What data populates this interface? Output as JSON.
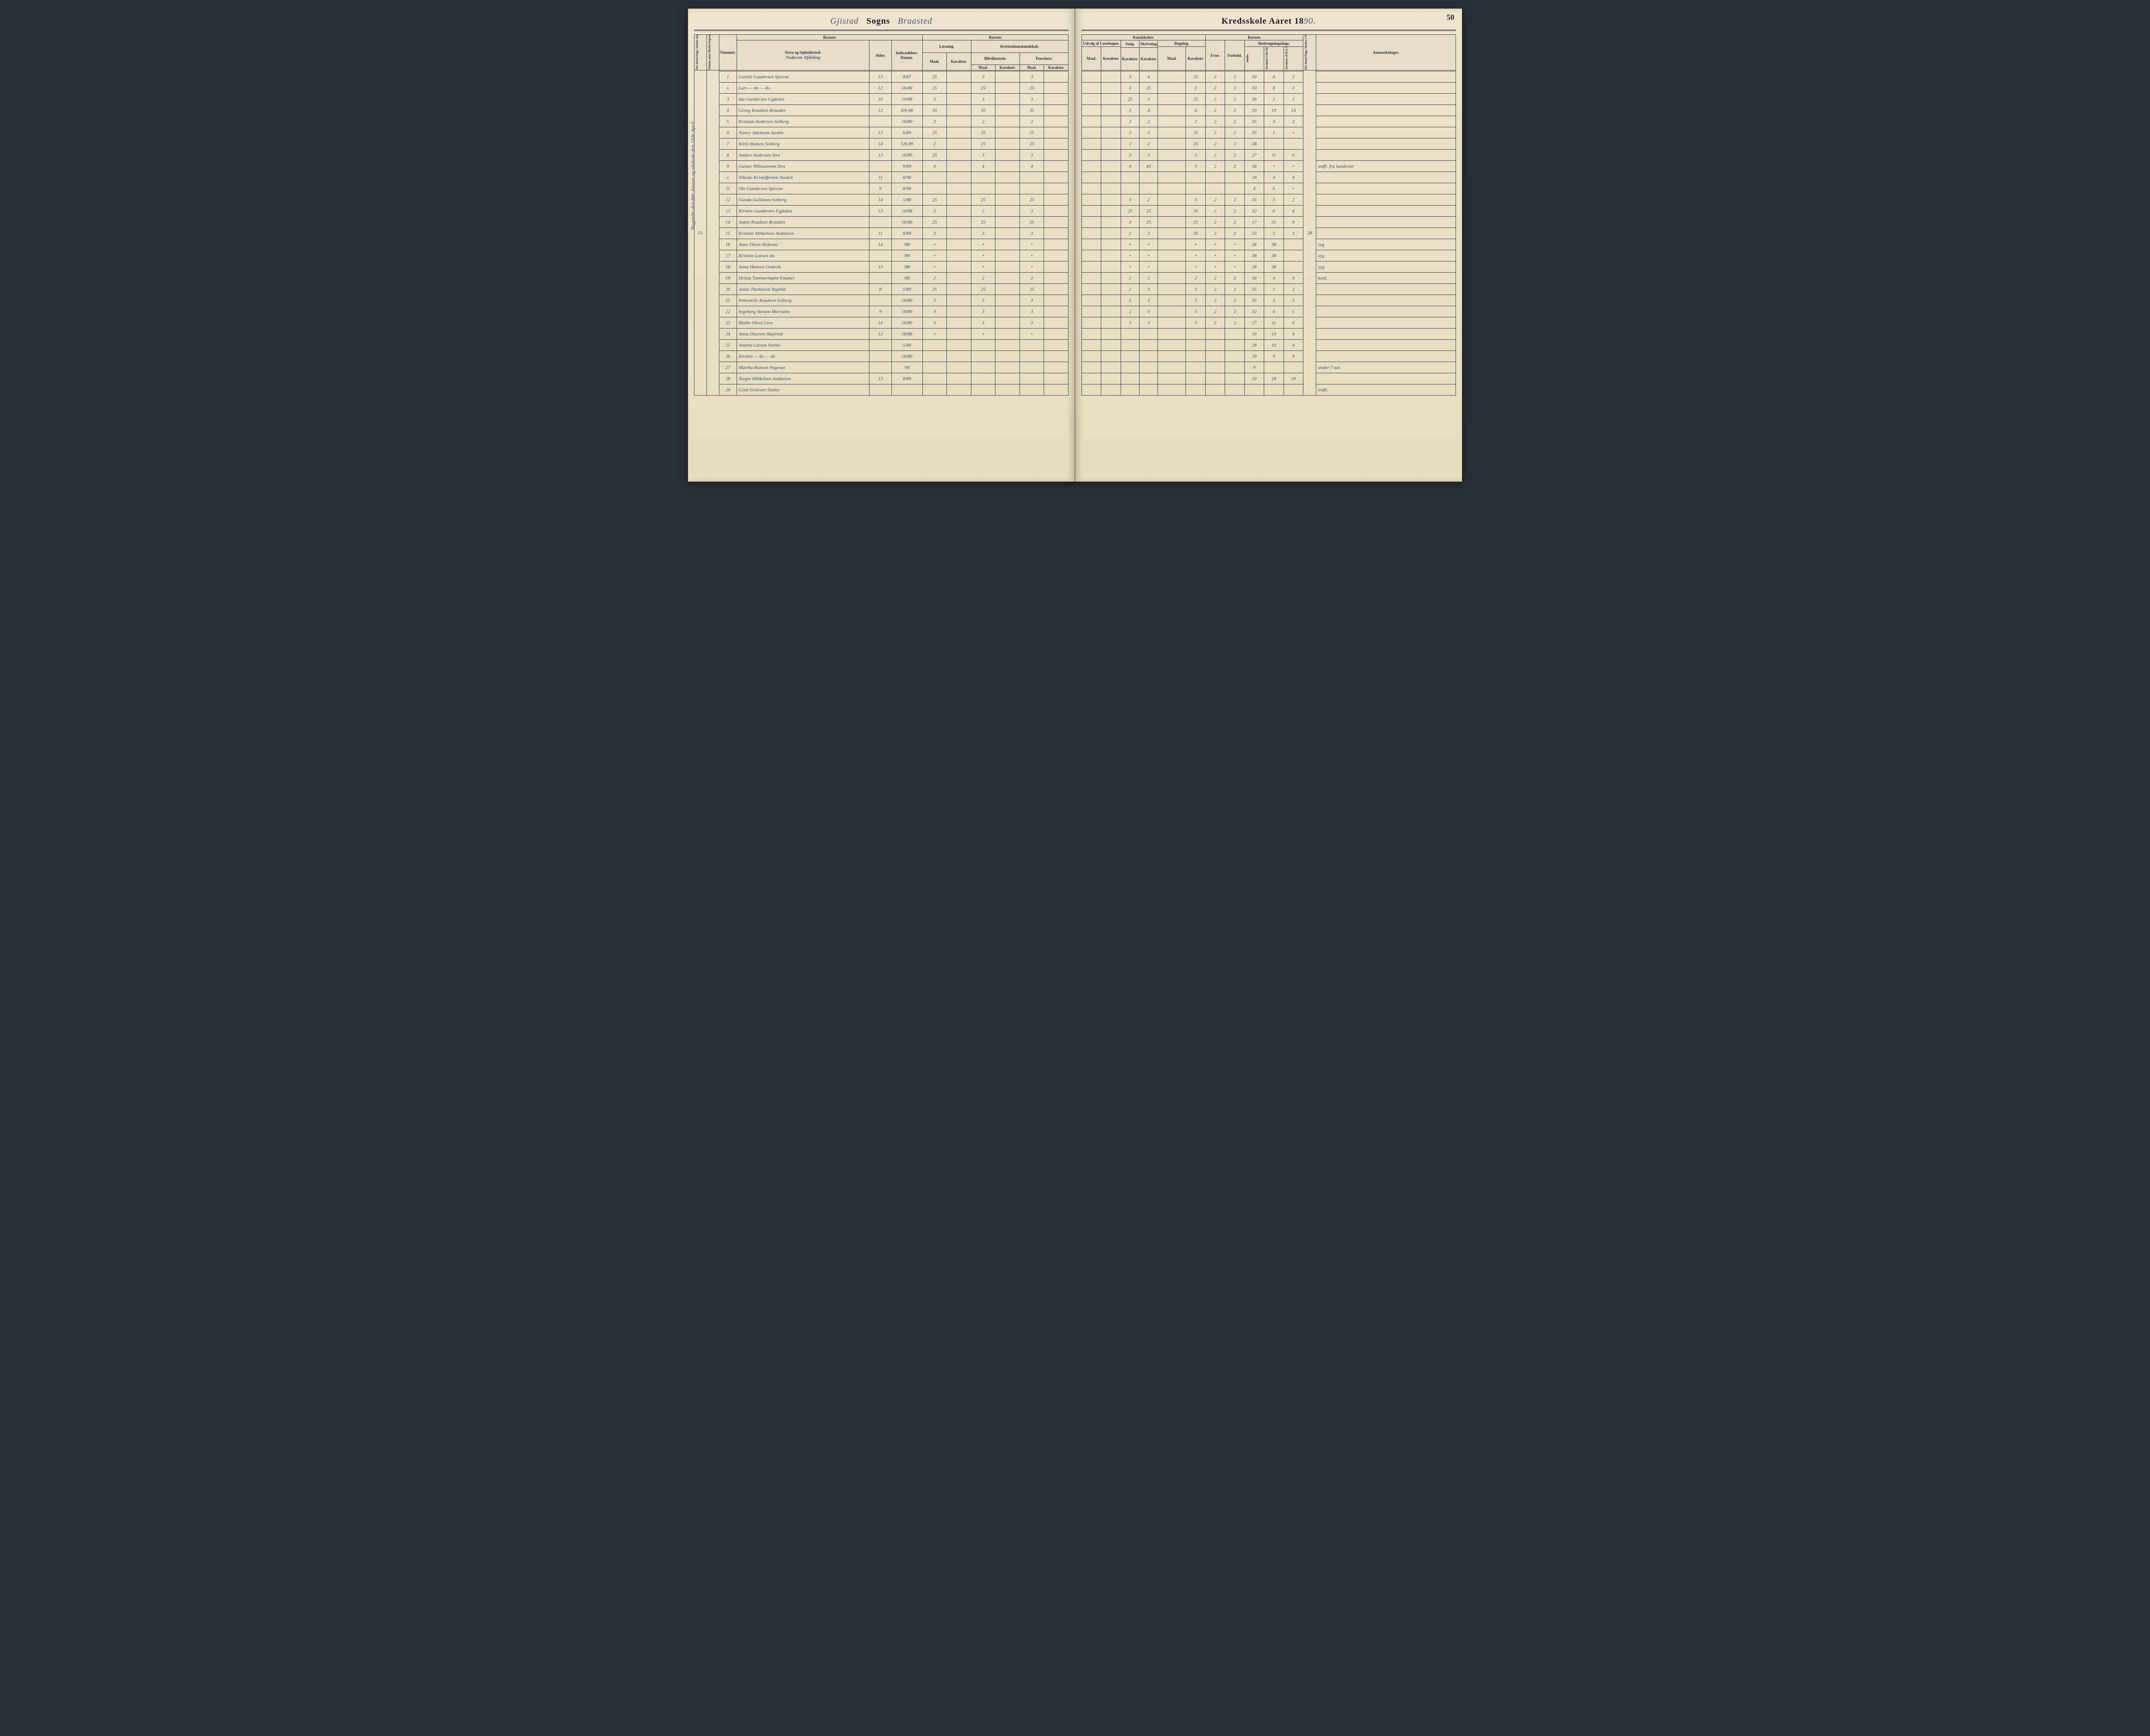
{
  "page_number": "50",
  "title_left": {
    "script": "Gjistad",
    "printed": "Sogns",
    "script2": "Braasted"
  },
  "title_right": {
    "printed": "Kredsskole Aaret 18",
    "script": "90."
  },
  "margin_note_left": "Begyndte den 8de Januar og sluttede den 16de April.",
  "margin_total": "51",
  "right_margin_total": "38",
  "headers_left": {
    "vcol1": "Det Antal Dage, Skolen skal holdes i Kredsen.",
    "vcol2": "Datum, naar Skolen begynder og slutter hver Omgang.",
    "nummer": "Nummer.",
    "barnets": "Barnets",
    "navn": "Navn og Opholdssted.",
    "section_note": "Nederste Afdeling",
    "alder": "Alder.",
    "indtr": "Indtrædelses-Datum.",
    "laesning": "Læsning.",
    "kristendom": "Kristendomskundskab.",
    "maal": "Maal.",
    "karakter": "Karakter.",
    "bibel": "Bibelhistorie.",
    "troes": "Troeslære."
  },
  "headers_right": {
    "kundskaber": "Kundskaber.",
    "udvalg": "Udvalg af Læsebogen.",
    "sang": "Sang.",
    "skriv": "Skrivning.",
    "regning": "Regning.",
    "barnets": "Barnets",
    "evne": "Evne.",
    "forhold": "Forhold.",
    "skole": "Skolesøgningsdage.",
    "modte": "mødte",
    "fors1": "forsømte i det Hele.",
    "fors2": "forsømte af lovl. Grund.",
    "vcol": "Det Antal Dage, Skolen i Virkeligheden er holdt.",
    "anm": "Anmærkninger."
  },
  "rows": [
    {
      "n": "1",
      "name": "Gunild Gundersen Spirene",
      "a": "13",
      "d": "8/87",
      "l_m": "25",
      "l_k": "",
      "b_m": "3",
      "b_k": "",
      "t_m": "3",
      "t_k": "",
      "u_m": "",
      "u_k": "",
      "sa": "3",
      "sk": "4",
      "r_m": "",
      "r_k": "25",
      "ev": "2",
      "fo": "2",
      "md": "30",
      "f1": "8",
      "f2": "2",
      "an": ""
    },
    {
      "n": "x",
      "name": "Lars — do — do",
      "a": "12",
      "d": "16/88",
      "l_m": "25",
      "l_k": "",
      "b_m": "25",
      "b_k": "",
      "t_m": "25",
      "t_k": "",
      "u_m": "",
      "u_k": "",
      "sa": "3",
      "sk": "25",
      "r_m": "",
      "r_k": "2",
      "ev": "2",
      "fo": "2",
      "md": "30",
      "f1": "8",
      "f2": "3",
      "an": ""
    },
    {
      "n": "3",
      "name": "Ida Gundersen Ugdalen",
      "a": "10",
      "d": "10/88",
      "l_m": "3",
      "l_k": "",
      "b_m": "3",
      "b_k": "",
      "t_m": "3",
      "t_k": "",
      "u_m": "",
      "u_k": "",
      "sa": "25",
      "sk": "3",
      "r_m": "",
      "r_k": "25",
      "ev": "2",
      "fo": "2",
      "md": "36",
      "f1": "2",
      "f2": "1",
      "an": ""
    },
    {
      "n": "4",
      "name": "Georg Knudsen Braaden",
      "a": "12",
      "d": "8/6 88",
      "l_m": "35",
      "l_k": "",
      "b_m": "35",
      "b_k": "",
      "t_m": "35",
      "t_k": "",
      "u_m": "",
      "u_k": "",
      "sa": "3",
      "sk": "4",
      "r_m": "",
      "r_k": "4",
      "ev": "2",
      "fo": "2",
      "md": "19",
      "f1": "19",
      "f2": "14",
      "an": ""
    },
    {
      "n": "5",
      "name": "Kristian Andersen Solberg",
      "a": "",
      "d": "16/89",
      "l_m": "3",
      "l_k": "",
      "b_m": "2",
      "b_k": "",
      "t_m": "2",
      "t_k": "",
      "u_m": "",
      "u_k": "",
      "sa": "2",
      "sk": "2",
      "r_m": "",
      "r_k": "2",
      "ev": "2",
      "fo": "2",
      "md": "35",
      "f1": "3",
      "f2": "2",
      "an": ""
    },
    {
      "n": "6",
      "name": "Nancy Jakobsen Aasbie",
      "a": "12",
      "d": "6/89",
      "l_m": "25",
      "l_k": "",
      "b_m": "25",
      "b_k": "",
      "t_m": "25",
      "t_k": "",
      "u_m": "",
      "u_k": "",
      "sa": "2",
      "sk": "3",
      "r_m": "",
      "r_k": "25",
      "ev": "2",
      "fo": "2",
      "md": "35",
      "f1": "1",
      "f2": "•",
      "an": ""
    },
    {
      "n": "7",
      "name": "Kittil Hansen Solberg",
      "a": "14",
      "d": "5/6 89",
      "l_m": "2",
      "l_k": "",
      "b_m": "25",
      "b_k": "",
      "t_m": "25",
      "t_k": "",
      "u_m": "",
      "u_k": "",
      "sa": "2",
      "sk": "2",
      "r_m": "",
      "r_k": "25",
      "ev": "2",
      "fo": "2",
      "md": "38",
      "f1": "",
      "f2": "",
      "an": ""
    },
    {
      "n": "8",
      "name": "Anders Andersen Stra",
      "a": "13",
      "d": "16/89",
      "l_m": "25",
      "l_k": "",
      "b_m": "3",
      "b_k": "",
      "t_m": "3",
      "t_k": "",
      "u_m": "",
      "u_k": "",
      "sa": "3",
      "sk": "3",
      "r_m": "",
      "r_k": "3",
      "ev": "2",
      "fo": "2",
      "md": "27",
      "f1": "11",
      "f2": "0",
      "an": ""
    },
    {
      "n": "9",
      "name": "Gustav Wilmastrøm Stra",
      "a": "",
      "d": "9/89",
      "l_m": "4",
      "l_k": "",
      "b_m": "4",
      "b_k": "",
      "t_m": "4",
      "t_k": "",
      "u_m": "",
      "u_k": "",
      "sa": "4",
      "sk": "45",
      "r_m": "",
      "r_k": "3",
      "ev": "2",
      "fo": "2",
      "md": "38",
      "f1": "•",
      "f2": "•",
      "an": "indfl. fra Sandsvær"
    },
    {
      "n": "x",
      "name": "Nikolai Kristoffersen Stadeli",
      "a": "11",
      "d": "8/90",
      "l_m": "",
      "l_k": "",
      "b_m": "",
      "b_k": "",
      "t_m": "",
      "t_k": "",
      "u_m": "",
      "u_k": "",
      "sa": "",
      "sk": "",
      "r_m": "",
      "r_k": "",
      "ev": "",
      "fo": "",
      "md": "18",
      "f1": "4",
      "f2": "4",
      "an": ""
    },
    {
      "n": "11",
      "name": "Ole Gundersen Spirene",
      "a": "9",
      "d": "8/90",
      "l_m": "",
      "l_k": "",
      "b_m": "",
      "b_k": "",
      "t_m": "",
      "t_k": "",
      "u_m": "",
      "u_k": "",
      "sa": "",
      "sk": "",
      "r_m": "",
      "r_k": "",
      "ev": "",
      "fo": "",
      "md": "4",
      "f1": "6",
      "f2": "•",
      "an": ""
    },
    {
      "n": "12",
      "name": "Gunda Gulliksen Solberg",
      "a": "14",
      "d": "5/88",
      "l_m": "25",
      "l_k": "",
      "b_m": "25",
      "b_k": "",
      "t_m": "25",
      "t_k": "",
      "u_m": "",
      "u_k": "",
      "sa": "3",
      "sk": "2",
      "r_m": "",
      "r_k": "3",
      "ev": "2",
      "fo": "2",
      "md": "35",
      "f1": "3",
      "f2": "2",
      "an": ""
    },
    {
      "n": "13",
      "name": "Kirsten Gundersen Ugdalen",
      "a": "13",
      "d": "16/88",
      "l_m": "3",
      "l_k": "",
      "b_m": "2",
      "b_k": "",
      "t_m": "3",
      "t_k": "",
      "u_m": "",
      "u_k": "",
      "sa": "25",
      "sk": "25",
      "r_m": "",
      "r_k": "35",
      "ev": "2",
      "fo": "2",
      "md": "32",
      "f1": "6",
      "f2": "4",
      "an": ""
    },
    {
      "n": "14",
      "name": "Anton Knudsen Braaden",
      "a": "",
      "d": "16/88",
      "l_m": "25",
      "l_k": "",
      "b_m": "25",
      "b_k": "",
      "t_m": "25",
      "t_k": "",
      "u_m": "",
      "u_k": "",
      "sa": "3",
      "sk": "25",
      "r_m": "",
      "r_k": "25",
      "ev": "2",
      "fo": "2",
      "md": "17",
      "f1": "21",
      "f2": "9",
      "an": ""
    },
    {
      "n": "15",
      "name": "Kristine Mikkelsen Andansen",
      "a": "11",
      "d": "8/89",
      "l_m": "3",
      "l_k": "",
      "b_m": "3",
      "b_k": "",
      "t_m": "3",
      "t_k": "",
      "u_m": "",
      "u_k": "",
      "sa": "2",
      "sk": "3",
      "r_m": "",
      "r_k": "35",
      "ev": "2",
      "fo": "2",
      "md": "33",
      "f1": "5",
      "f2": "3",
      "an": ""
    },
    {
      "n": "16",
      "name": "Anne Olsen Nedenas",
      "a": "14",
      "d": "/88",
      "l_m": "•",
      "l_k": "",
      "b_m": "•",
      "b_k": "",
      "t_m": "•",
      "t_k": "",
      "u_m": "",
      "u_k": "",
      "sa": "•",
      "sk": "•",
      "r_m": "",
      "r_k": "•",
      "ev": "•",
      "fo": "•",
      "md": "38",
      "f1": "38",
      "f2": "",
      "an": "syg"
    },
    {
      "n": "17",
      "name": "Kristine Larsen do.",
      "a": "",
      "d": "/89",
      "l_m": "•",
      "l_k": "",
      "b_m": "•",
      "b_k": "",
      "t_m": "•",
      "t_k": "",
      "u_m": "",
      "u_k": "",
      "sa": "•",
      "sk": "•",
      "r_m": "",
      "r_k": "•",
      "ev": "•",
      "fo": "•",
      "md": "38",
      "f1": "38",
      "f2": "",
      "an": "syg"
    },
    {
      "n": "18",
      "name": "Anna Hansen Grønvik",
      "a": "13",
      "d": "/88",
      "l_m": "•",
      "l_k": "",
      "b_m": "•",
      "b_k": "",
      "t_m": "•",
      "t_k": "",
      "u_m": "",
      "u_k": "",
      "sa": "•",
      "sk": "•",
      "r_m": "",
      "r_k": "•",
      "ev": "•",
      "fo": "•",
      "md": "38",
      "f1": "38",
      "f2": "",
      "an": "syg."
    },
    {
      "n": "19",
      "name": "Helma Tømmermann Emanel",
      "a": "",
      "d": "/88",
      "l_m": "2",
      "l_k": "",
      "b_m": "2",
      "b_k": "",
      "t_m": "2",
      "t_k": "",
      "u_m": "",
      "u_k": "",
      "sa": "2",
      "sk": "2",
      "r_m": "",
      "r_k": "2",
      "ev": "2",
      "fo": "2",
      "md": "34",
      "f1": "4",
      "f2": "3",
      "an": "konf."
    },
    {
      "n": "20",
      "name": "Aasta Thomasen Vagnild",
      "a": "8",
      "d": "5/89",
      "l_m": "25",
      "l_k": "",
      "b_m": "25",
      "b_k": "",
      "t_m": "25",
      "t_k": "",
      "u_m": "",
      "u_k": "",
      "sa": "2",
      "sk": "3",
      "r_m": "",
      "r_k": "3",
      "ev": "2",
      "fo": "2",
      "md": "35",
      "f1": "3",
      "f2": "2",
      "an": ""
    },
    {
      "n": "21",
      "name": "Petronelle Knudsen Solberg",
      "a": "",
      "d": "16/89",
      "l_m": "3",
      "l_k": "",
      "b_m": "3",
      "b_k": "",
      "t_m": "3",
      "t_k": "",
      "u_m": "",
      "u_k": "",
      "sa": "2",
      "sk": "3",
      "r_m": "",
      "r_k": "3",
      "ev": "2",
      "fo": "2",
      "md": "35",
      "f1": "3",
      "f2": "3",
      "an": ""
    },
    {
      "n": "22",
      "name": "Ingeborg Vansen Morvalen",
      "a": "9",
      "d": "16/89",
      "l_m": "3",
      "l_k": "",
      "b_m": "3",
      "b_k": "",
      "t_m": "3",
      "t_k": "",
      "u_m": "",
      "u_k": "",
      "sa": "2",
      "sk": "3",
      "r_m": "",
      "r_k": "3",
      "ev": "2",
      "fo": "2",
      "md": "32",
      "f1": "6",
      "f2": "5",
      "an": ""
    },
    {
      "n": "23",
      "name": "Mathe Olsen Lien",
      "a": "14",
      "d": "16/89",
      "l_m": "3",
      "l_k": "",
      "b_m": "3",
      "b_k": "",
      "t_m": "3",
      "t_k": "",
      "u_m": "",
      "u_k": "",
      "sa": "3",
      "sk": "3",
      "r_m": "",
      "r_k": "3",
      "ev": "2",
      "fo": "2",
      "md": "27",
      "f1": "11",
      "f2": "9",
      "an": ""
    },
    {
      "n": "24",
      "name": "Anna Olavsen Skajvind",
      "a": "12",
      "d": "16/88",
      "l_m": "•",
      "l_k": "",
      "b_m": "•",
      "b_k": "",
      "t_m": "•",
      "t_k": "",
      "u_m": "",
      "u_k": "",
      "sa": "",
      "sk": "",
      "r_m": "",
      "r_k": "",
      "ev": "",
      "fo": "",
      "md": "19",
      "f1": "19",
      "f2": "4",
      "an": ""
    },
    {
      "n": "25",
      "name": "Andrea Larsen Norbö",
      "a": "",
      "d": "5/89",
      "l_m": "",
      "l_k": "",
      "b_m": "",
      "b_k": "",
      "t_m": "",
      "t_k": "",
      "u_m": "",
      "u_k": "",
      "sa": "",
      "sk": "",
      "r_m": "",
      "r_k": "",
      "ev": "",
      "fo": "",
      "md": "28",
      "f1": "10",
      "f2": "4",
      "an": ""
    },
    {
      "n": "26",
      "name": "Kirsten — do — do",
      "a": "",
      "d": "16/89",
      "l_m": "",
      "l_k": "",
      "b_m": "",
      "b_k": "",
      "t_m": "",
      "t_k": "",
      "u_m": "",
      "u_k": "",
      "sa": "",
      "sk": "",
      "r_m": "",
      "r_k": "",
      "ev": "",
      "fo": "",
      "md": "29",
      "f1": "9",
      "f2": "9",
      "an": ""
    },
    {
      "n": "27",
      "name": "Martha Hansen Vogenas",
      "a": "",
      "d": "/90",
      "l_m": "",
      "l_k": "",
      "b_m": "",
      "b_k": "",
      "t_m": "",
      "t_k": "",
      "u_m": "",
      "u_k": "",
      "sa": "",
      "sk": "",
      "r_m": "",
      "r_k": "",
      "ev": "",
      "fo": "",
      "md": "9",
      "f1": "",
      "f2": "",
      "an": "under 7 aar."
    },
    {
      "n": "28",
      "name": "Torgot Mikkelsen Andansen",
      "a": "13",
      "d": "8/89",
      "l_m": "",
      "l_k": "",
      "b_m": "",
      "b_k": "",
      "t_m": "",
      "t_k": "",
      "u_m": "",
      "u_k": "",
      "sa": "",
      "sk": "",
      "r_m": "",
      "r_k": "",
      "ev": "",
      "fo": "",
      "md": "20",
      "f1": "18",
      "f2": "18",
      "an": ""
    },
    {
      "n": "29",
      "name": "Gisle Gislesen Slottet",
      "a": "",
      "d": "",
      "l_m": "",
      "l_k": "",
      "b_m": "",
      "b_k": "",
      "t_m": "",
      "t_k": "",
      "u_m": "",
      "u_k": "",
      "sa": "",
      "sk": "",
      "r_m": "",
      "r_k": "",
      "ev": "",
      "fo": "",
      "md": "",
      "f1": "",
      "f2": "",
      "an": "indfl."
    }
  ]
}
